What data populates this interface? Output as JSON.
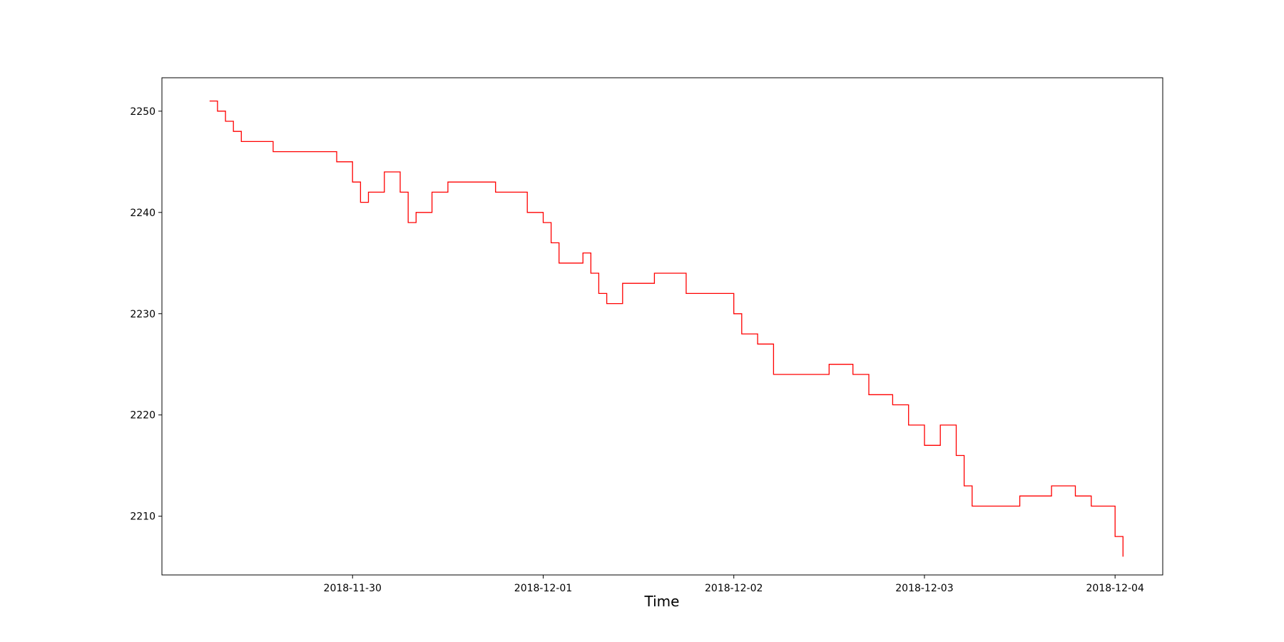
{
  "chart_data": {
    "type": "line",
    "title": "",
    "xlabel": "Time",
    "ylabel": "",
    "x_ticks": [
      "2018-11-30",
      "2018-12-01",
      "2018-12-02",
      "2018-12-03",
      "2018-12-04"
    ],
    "y_ticks": [
      2210,
      2220,
      2230,
      2240,
      2250
    ],
    "xlim": [
      "2018-11-29 00:00",
      "2018-12-04 06:00"
    ],
    "ylim": [
      2204.2,
      2253.3
    ],
    "grid": false,
    "legend": "none",
    "line_color": "#ff0000",
    "series": [
      {
        "x": [
          "2018-11-29 06:00",
          "2018-11-29 07:00",
          "2018-11-29 08:00",
          "2018-11-29 09:00",
          "2018-11-29 10:00",
          "2018-11-29 12:00",
          "2018-11-29 14:00",
          "2018-11-29 18:00",
          "2018-11-29 22:00",
          "2018-11-30 00:00",
          "2018-11-30 01:00",
          "2018-11-30 02:00",
          "2018-11-30 04:00",
          "2018-11-30 06:00",
          "2018-11-30 07:00",
          "2018-11-30 08:00",
          "2018-11-30 10:00",
          "2018-11-30 12:00",
          "2018-11-30 18:00",
          "2018-11-30 22:00",
          "2018-12-01 00:00",
          "2018-12-01 01:00",
          "2018-12-01 02:00",
          "2018-12-01 05:00",
          "2018-12-01 06:00",
          "2018-12-01 07:00",
          "2018-12-01 08:00",
          "2018-12-01 10:00",
          "2018-12-01 14:00",
          "2018-12-01 18:00",
          "2018-12-01 23:00",
          "2018-12-02 00:00",
          "2018-12-02 01:00",
          "2018-12-02 03:00",
          "2018-12-02 05:00",
          "2018-12-02 08:00",
          "2018-12-02 12:00",
          "2018-12-02 15:00",
          "2018-12-02 17:00",
          "2018-12-02 20:00",
          "2018-12-02 22:00",
          "2018-12-03 00:00",
          "2018-12-03 02:00",
          "2018-12-03 04:00",
          "2018-12-03 05:00",
          "2018-12-03 06:00",
          "2018-12-03 08:00",
          "2018-12-03 12:00",
          "2018-12-03 16:00",
          "2018-12-03 19:00",
          "2018-12-03 21:00",
          "2018-12-04 00:00",
          "2018-12-04 01:00"
        ],
        "y": [
          2251,
          2250,
          2249,
          2248,
          2247,
          2247,
          2246,
          2246,
          2245,
          2243,
          2241,
          2242,
          2244,
          2242,
          2239,
          2240,
          2242,
          2243,
          2242,
          2240,
          2239,
          2237,
          2235,
          2236,
          2234,
          2232,
          2231,
          2233,
          2234,
          2232,
          2232,
          2230,
          2228,
          2227,
          2224,
          2224,
          2225,
          2224,
          2222,
          2221,
          2219,
          2217,
          2219,
          2216,
          2213,
          2211,
          2211,
          2212,
          2213,
          2212,
          2211,
          2208,
          2206
        ]
      }
    ]
  }
}
